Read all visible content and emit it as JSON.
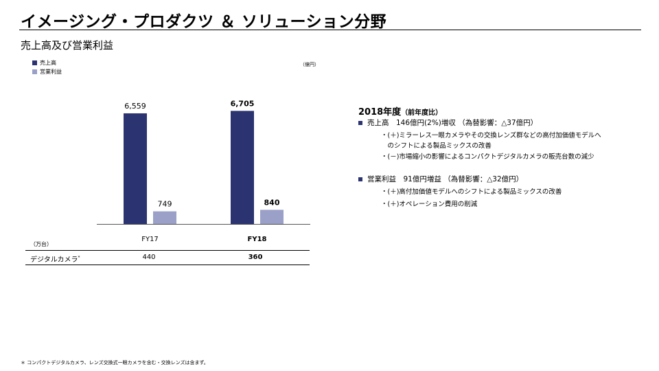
{
  "header": {
    "title": "イメージング・プロダクツ ＆ ソリューション分野",
    "subtitle": "売上高及び営業利益"
  },
  "legend": [
    {
      "label": "売上高",
      "color": "#2b3370"
    },
    {
      "label": "営業利益",
      "color": "#9aa0c8"
    }
  ],
  "unit_label": "（億円）",
  "chart_data": {
    "type": "bar",
    "categories": [
      "FY17",
      "FY18"
    ],
    "series": [
      {
        "name": "売上高",
        "values": [
          6559,
          6705
        ],
        "value_labels": [
          "6,559",
          "6,705"
        ],
        "color": "#2b3370"
      },
      {
        "name": "営業利益",
        "values": [
          749,
          840
        ],
        "value_labels": [
          "749",
          "840"
        ],
        "color": "#9aa0c8"
      }
    ],
    "bold_category_index": 1
  },
  "table": {
    "unit": "（万台）",
    "row_label": "デジタルカメラ",
    "row_label_mark": "*",
    "values": [
      "440",
      "360"
    ]
  },
  "right_panel": {
    "heading": "2018年度",
    "heading_paren": "（前年度比）",
    "sections": [
      {
        "bullet": "売上高　146億円(2%)増収 （為替影響：△37億円）",
        "lines": [
          "・(＋)ミラーレス一眼カメラやその交換レンズ群などの高付加価値モデルへ",
          "　のシフトによる製品ミックスの改善",
          "・(－)市場縮小の影響によるコンパクトデジタルカメラの販売台数の減少"
        ]
      },
      {
        "bullet": "営業利益　91億円増益 （為替影響：△32億円）",
        "lines": [
          "・(＋)高付加価値モデルへのシフトによる製品ミックスの改善",
          "・(＋)オペレーション費用の削減"
        ]
      }
    ]
  },
  "footnote": "＊ コンパクトデジタルカメラ、レンズ交換式一眼カメラを含む・交換レンズは含まず。"
}
